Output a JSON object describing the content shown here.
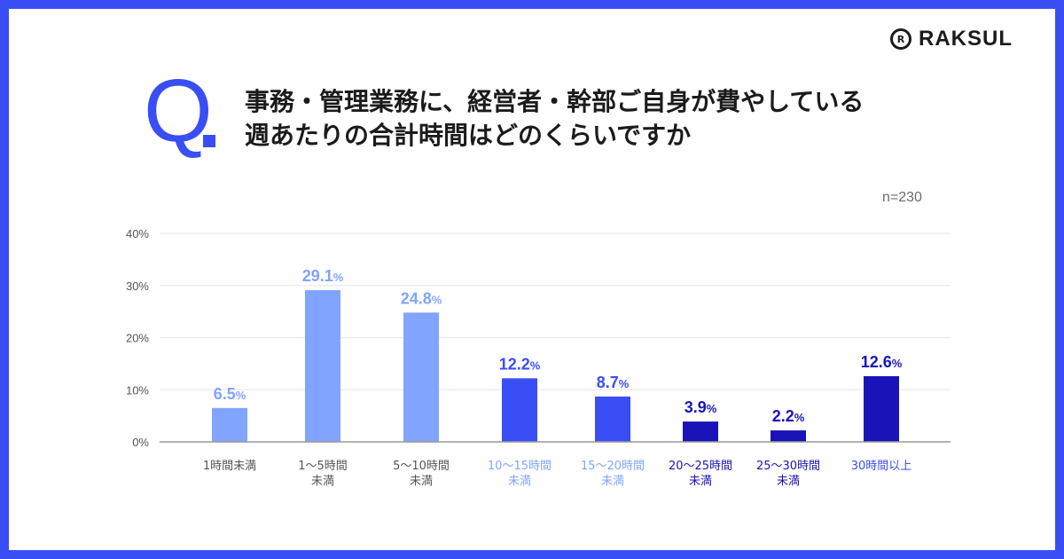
{
  "brand": {
    "name": "RAKSUL",
    "mark": "R"
  },
  "question": {
    "prefix": "Q",
    "line1": "事務・管理業務に、経営者・幹部ご自身が費やしている",
    "line2": "週あたりの合計時間はどのくらいですか"
  },
  "sample": "n=230",
  "colors": {
    "background": "#3a4ef5",
    "light": "#80a4ff",
    "medium": "#3a4ef5",
    "dark": "#1a14b8"
  },
  "chart_data": {
    "type": "bar",
    "categories": [
      [
        "1時間未満"
      ],
      [
        "1〜5時間",
        "未満"
      ],
      [
        "5〜10時間",
        "未満"
      ],
      [
        "10〜15時間",
        "未満"
      ],
      [
        "15〜20時間",
        "未満"
      ],
      [
        "20〜25時間",
        "未満"
      ],
      [
        "25〜30時間",
        "未満"
      ],
      [
        "30時間以上"
      ]
    ],
    "values": [
      6.5,
      29.1,
      24.8,
      12.2,
      8.7,
      3.9,
      2.2,
      12.6
    ],
    "unit": "%",
    "yticks": [
      "0%",
      "10%",
      "20%",
      "30%",
      "40%"
    ],
    "ylim": [
      0,
      40
    ],
    "grid": true,
    "bar_colors": [
      "#80a4ff",
      "#80a4ff",
      "#80a4ff",
      "#3a4ef5",
      "#3a4ef5",
      "#1a14b8",
      "#1a14b8",
      "#1a14b8"
    ],
    "label_colors": [
      "#80a4ff",
      "#80a4ff",
      "#80a4ff",
      "#3a4ef5",
      "#3a4ef5",
      "#1a14b8",
      "#1a14b8",
      "#1a14b8"
    ],
    "category_colors": [
      "#555555",
      "#555555",
      "#555555",
      "#80a4ff",
      "#80a4ff",
      "#1a14b8",
      "#1a14b8",
      "#3a4ef5"
    ]
  }
}
